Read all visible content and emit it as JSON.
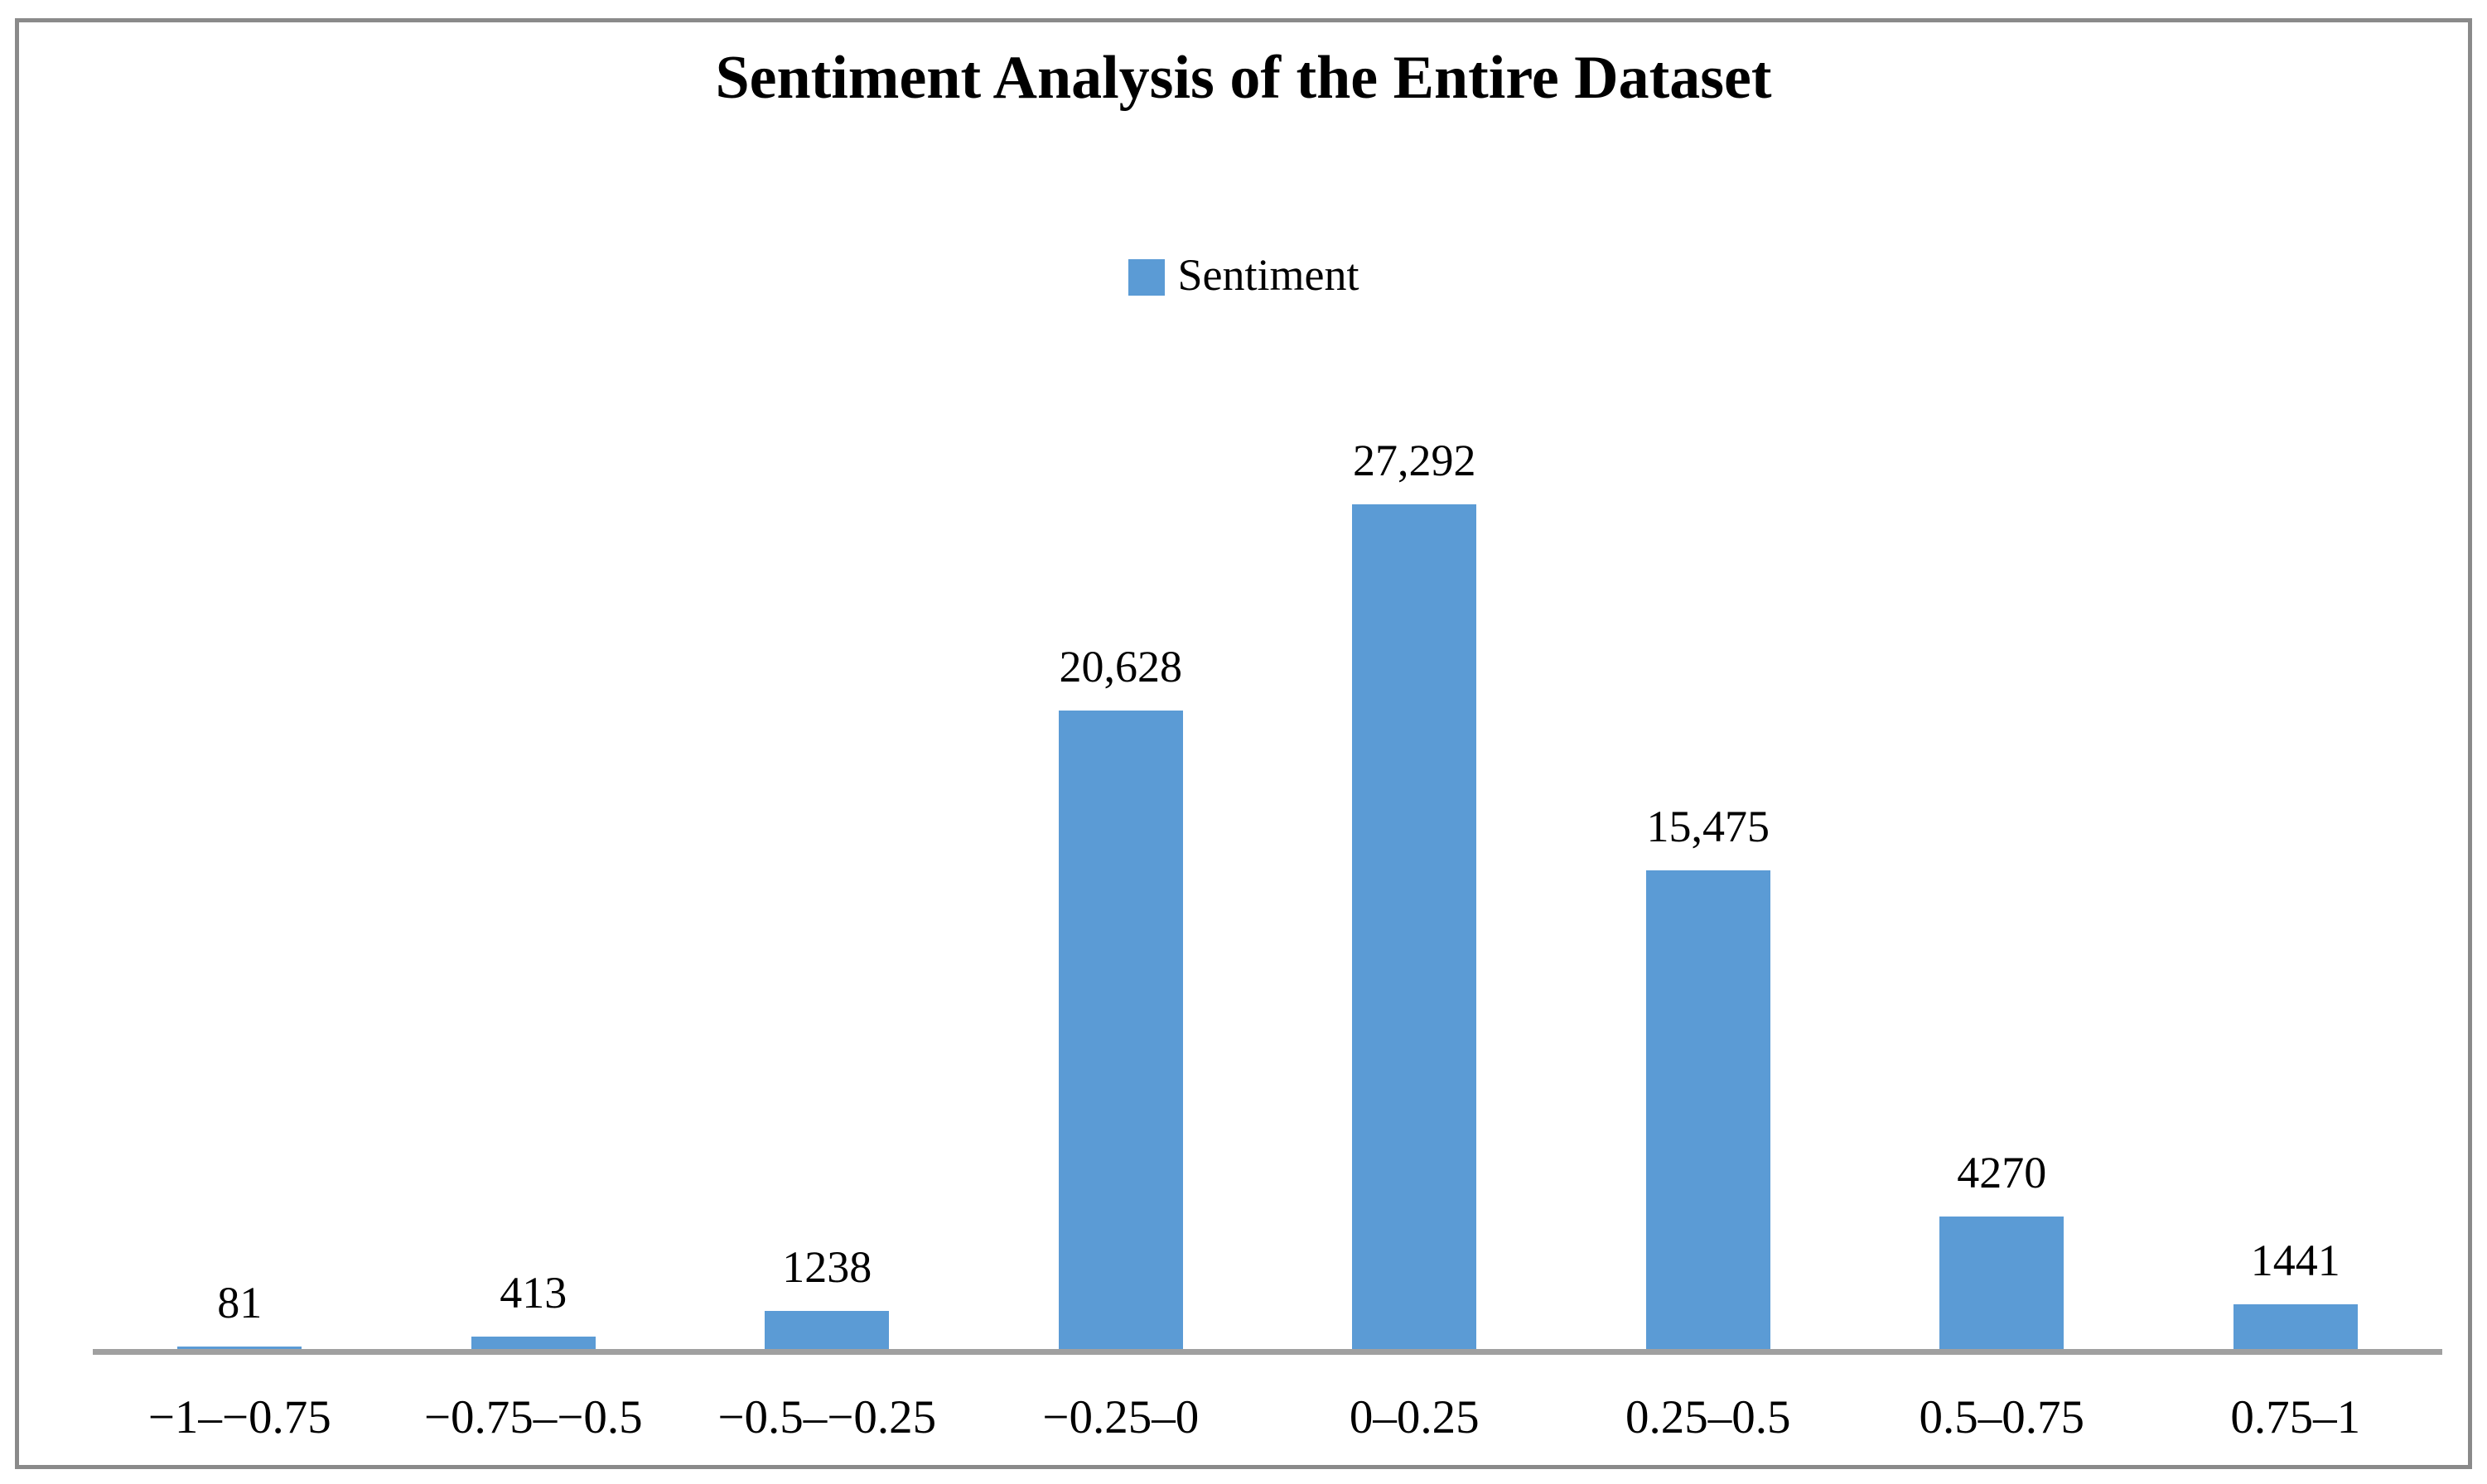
{
  "frame": {
    "border_color": "#8A8A8A",
    "background_color": "#FFFFFF"
  },
  "chart_data": {
    "type": "bar",
    "title": "Sentiment Analysis of the Entire Dataset",
    "legend": {
      "label": "Sentiment",
      "swatch_color": "#5B9BD5",
      "position": "top-center"
    },
    "series_name": "Sentiment",
    "categories": [
      "−1–−0.75",
      "−0.75–−0.5",
      "−0.5–−0.25",
      "−0.25–0",
      "0–0.25",
      "0.25–0.5",
      "0.5–0.75",
      "0.75–1"
    ],
    "values": [
      81,
      413,
      1238,
      20628,
      27292,
      15475,
      4270,
      1441
    ],
    "value_labels": [
      "81",
      "413",
      "1238",
      "20,628",
      "27,292",
      "15,475",
      "4270",
      "1441"
    ],
    "bar_color": "#5B9BD5",
    "axis_line_color": "#A0A0A0",
    "text_color": "#000000",
    "xlabel": "",
    "ylabel": "",
    "ylim": [
      0,
      27292
    ],
    "grid": false,
    "y_axis_visible": false,
    "data_label_position": "outside-end"
  }
}
